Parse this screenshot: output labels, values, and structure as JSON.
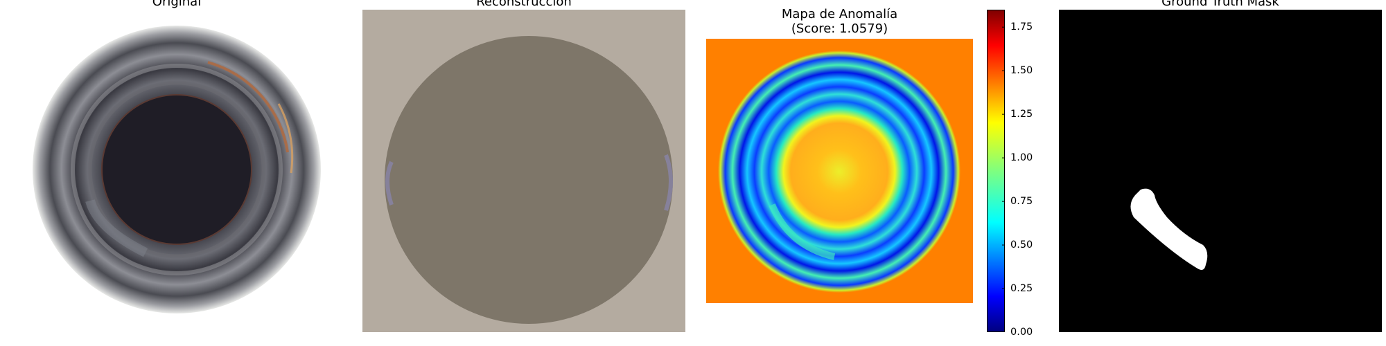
{
  "panels": [
    {
      "title": "Original"
    },
    {
      "title": "Reconstrucción"
    },
    {
      "title": "Mapa de Anomalía\n(Score: 1.0579)"
    },
    {
      "title": "Ground Truth Mask"
    }
  ],
  "colorbar": {
    "colormap": "jet",
    "min": 0.0,
    "max": 1.85,
    "ticks": [
      "0.00",
      "0.25",
      "0.50",
      "0.75",
      "1.00",
      "1.25",
      "1.50",
      "1.75"
    ]
  },
  "colors": {
    "reconstruction_bg": "#b4aba0",
    "reconstruction_disc": "#7e7669",
    "anomaly_bg": "#ff8000",
    "mask_bg": "#000000",
    "mask_region": "#ffffff"
  }
}
